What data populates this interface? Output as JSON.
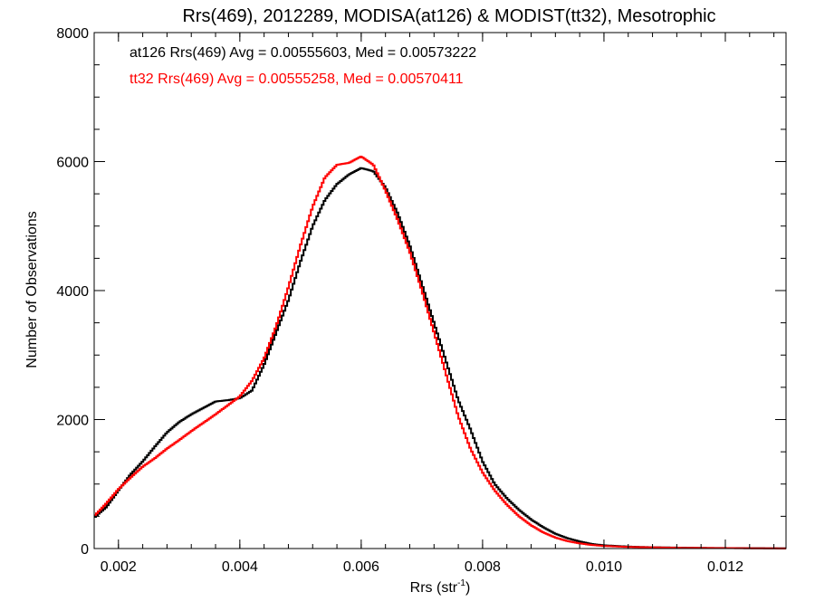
{
  "chart_data": {
    "type": "line",
    "title": "Rrs(469), 2012289, MODISA(at126) & MODIST(tt32), Mesotrophic",
    "xlabel_main": "Rrs (str",
    "xlabel_sup": "-1",
    "xlabel_close": ")",
    "ylabel": "Number of Observations",
    "xlim": [
      0.0016,
      0.013
    ],
    "ylim": [
      0,
      8000
    ],
    "x_ticks": [
      0.002,
      0.004,
      0.006,
      0.008,
      0.01,
      0.012
    ],
    "x_tick_labels": [
      "0.002",
      "0.004",
      "0.006",
      "0.008",
      "0.010",
      "0.012"
    ],
    "y_ticks": [
      0,
      2000,
      4000,
      6000,
      8000
    ],
    "y_tick_labels": [
      "0",
      "2000",
      "4000",
      "6000",
      "8000"
    ],
    "grid": false,
    "legend_position": "top-left",
    "series": [
      {
        "name": "at126",
        "legend": "at126 Rrs(469) Avg = 0.00555603, Med = 0.00573222",
        "color": "#000000",
        "points": [
          [
            0.0016,
            480
          ],
          [
            0.0018,
            640
          ],
          [
            0.002,
            900
          ],
          [
            0.0022,
            1150
          ],
          [
            0.0024,
            1350
          ],
          [
            0.0026,
            1580
          ],
          [
            0.0028,
            1800
          ],
          [
            0.003,
            1960
          ],
          [
            0.0032,
            2080
          ],
          [
            0.0034,
            2180
          ],
          [
            0.0036,
            2280
          ],
          [
            0.0038,
            2300
          ],
          [
            0.004,
            2330
          ],
          [
            0.0042,
            2450
          ],
          [
            0.0044,
            2850
          ],
          [
            0.0046,
            3350
          ],
          [
            0.0048,
            3850
          ],
          [
            0.005,
            4450
          ],
          [
            0.0052,
            5000
          ],
          [
            0.0054,
            5400
          ],
          [
            0.0056,
            5650
          ],
          [
            0.0058,
            5800
          ],
          [
            0.006,
            5900
          ],
          [
            0.0062,
            5850
          ],
          [
            0.0064,
            5600
          ],
          [
            0.0066,
            5200
          ],
          [
            0.0068,
            4700
          ],
          [
            0.007,
            4100
          ],
          [
            0.0072,
            3500
          ],
          [
            0.0074,
            2900
          ],
          [
            0.0076,
            2300
          ],
          [
            0.0078,
            1850
          ],
          [
            0.008,
            1350
          ],
          [
            0.0082,
            1000
          ],
          [
            0.0084,
            780
          ],
          [
            0.0086,
            600
          ],
          [
            0.0088,
            450
          ],
          [
            0.009,
            330
          ],
          [
            0.0092,
            230
          ],
          [
            0.0094,
            160
          ],
          [
            0.0096,
            110
          ],
          [
            0.0098,
            70
          ],
          [
            0.01,
            50
          ],
          [
            0.0104,
            30
          ],
          [
            0.0108,
            20
          ],
          [
            0.0112,
            15
          ],
          [
            0.0116,
            10
          ],
          [
            0.012,
            8
          ],
          [
            0.0125,
            5
          ],
          [
            0.013,
            3
          ]
        ]
      },
      {
        "name": "tt32",
        "legend": "tt32 Rrs(469) Avg = 0.00555258, Med = 0.00570411",
        "color": "#ff0000",
        "points": [
          [
            0.0016,
            500
          ],
          [
            0.0018,
            700
          ],
          [
            0.002,
            920
          ],
          [
            0.0022,
            1100
          ],
          [
            0.0024,
            1270
          ],
          [
            0.0026,
            1400
          ],
          [
            0.0028,
            1550
          ],
          [
            0.003,
            1680
          ],
          [
            0.0032,
            1820
          ],
          [
            0.0034,
            1950
          ],
          [
            0.0036,
            2080
          ],
          [
            0.0038,
            2220
          ],
          [
            0.004,
            2360
          ],
          [
            0.0042,
            2600
          ],
          [
            0.0044,
            2950
          ],
          [
            0.0046,
            3450
          ],
          [
            0.0048,
            4050
          ],
          [
            0.005,
            4700
          ],
          [
            0.0052,
            5300
          ],
          [
            0.0054,
            5750
          ],
          [
            0.0056,
            5950
          ],
          [
            0.0058,
            5980
          ],
          [
            0.006,
            6080
          ],
          [
            0.0062,
            5950
          ],
          [
            0.0064,
            5550
          ],
          [
            0.0066,
            5100
          ],
          [
            0.0068,
            4600
          ],
          [
            0.007,
            4000
          ],
          [
            0.0072,
            3350
          ],
          [
            0.0074,
            2700
          ],
          [
            0.0076,
            2050
          ],
          [
            0.0078,
            1550
          ],
          [
            0.008,
            1180
          ],
          [
            0.0082,
            900
          ],
          [
            0.0084,
            680
          ],
          [
            0.0086,
            500
          ],
          [
            0.0088,
            360
          ],
          [
            0.009,
            250
          ],
          [
            0.0092,
            170
          ],
          [
            0.0094,
            115
          ],
          [
            0.0096,
            80
          ],
          [
            0.0098,
            55
          ],
          [
            0.01,
            40
          ],
          [
            0.0104,
            25
          ],
          [
            0.0108,
            18
          ],
          [
            0.0112,
            12
          ],
          [
            0.0116,
            9
          ],
          [
            0.012,
            7
          ],
          [
            0.0125,
            4
          ],
          [
            0.013,
            2
          ]
        ]
      }
    ]
  }
}
